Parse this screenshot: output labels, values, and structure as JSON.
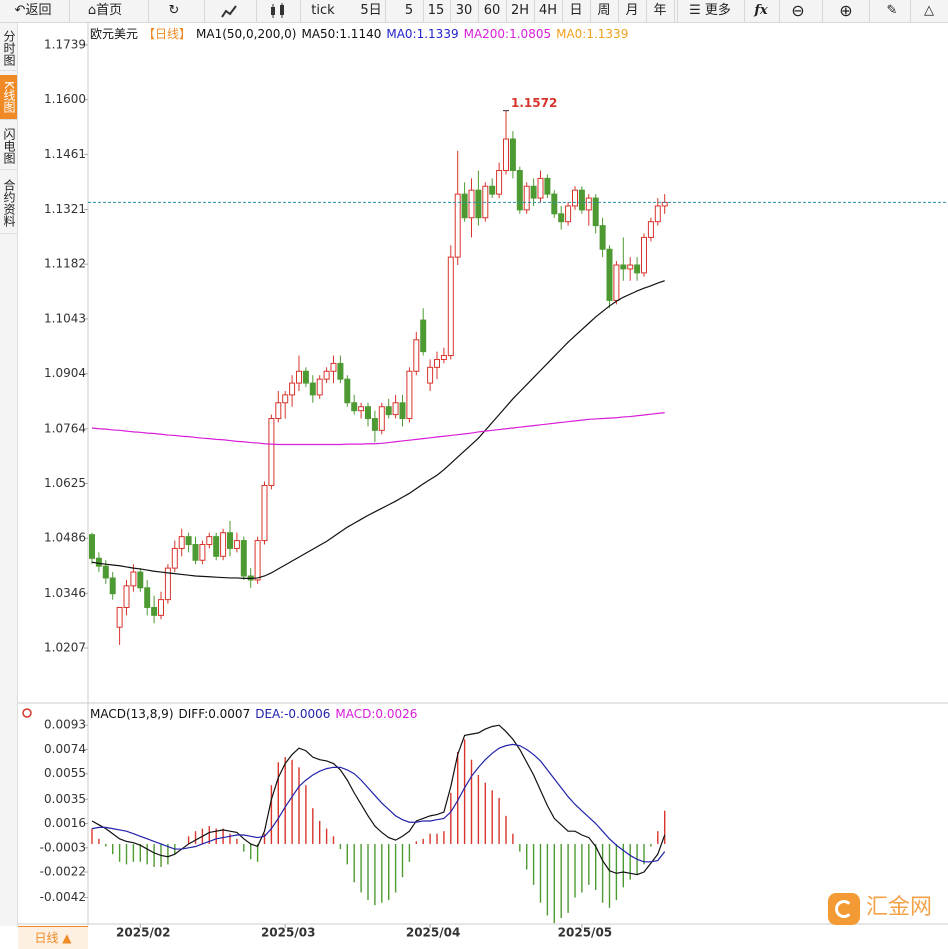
{
  "toolbar": {
    "back": "返回",
    "home": "首页",
    "tick": "tick",
    "periods": [
      "5日",
      "5",
      "15",
      "30",
      "60",
      "2H",
      "4H",
      "日",
      "周",
      "月",
      "年"
    ],
    "more": "更多",
    "fx": "fx"
  },
  "sidebar": [
    "分时图",
    "K线图",
    "闪电图",
    "合约资料"
  ],
  "bottom_tab": "日线 ▲",
  "watermark": "汇金网",
  "chart_data": [
    {
      "type": "candlestick",
      "symbol": "欧元美元",
      "period": "【日线】",
      "indicator": "MA1(50,0,200,0)",
      "legend_texts": [
        {
          "text": "MA50:1.1140",
          "color": "#111111"
        },
        {
          "text": "MA0:1.1339",
          "color": "#2222cc"
        },
        {
          "text": "MA200:1.0805",
          "color": "#d81ed8"
        },
        {
          "text": "MA0:1.1339",
          "color": "#f0a020"
        }
      ],
      "annotation": "1.1572",
      "up_color": "#d8342c",
      "down_color": "#4e9a32",
      "last_line_color": "#2a8fa0",
      "categories": [
        null,
        null,
        null,
        null,
        null,
        null,
        null,
        "2025/02",
        null,
        null,
        null,
        null,
        null,
        null,
        null,
        null,
        null,
        null,
        null,
        null,
        null,
        null,
        null,
        null,
        null,
        null,
        null,
        null,
        "2025/03",
        null,
        null,
        null,
        null,
        null,
        null,
        null,
        null,
        null,
        null,
        null,
        null,
        null,
        null,
        null,
        null,
        null,
        null,
        null,
        null,
        "2025/04",
        null,
        null,
        null,
        null,
        null,
        null,
        null,
        null,
        null,
        null,
        null,
        null,
        null,
        null,
        null,
        null,
        null,
        null,
        null,
        null,
        null,
        "2025/05",
        null,
        null,
        null,
        null,
        null,
        null,
        null,
        null,
        null,
        null,
        null,
        null
      ],
      "open": [
        1.0495,
        1.0435,
        1.0415,
        1.0385,
        1.026,
        1.031,
        1.0365,
        1.04,
        1.036,
        1.031,
        1.029,
        1.033,
        1.041,
        1.046,
        1.049,
        1.047,
        1.043,
        1.047,
        1.049,
        1.044,
        1.05,
        1.046,
        1.048,
        1.039,
        1.038,
        1.048,
        1.062,
        1.079,
        1.083,
        1.085,
        1.088,
        1.091,
        1.088,
        1.085,
        1.089,
        1.091,
        1.093,
        1.089,
        1.083,
        1.081,
        1.082,
        1.079,
        1.076,
        1.082,
        1.08,
        1.083,
        1.079,
        1.091,
        1.104,
        1.088,
        1.092,
        1.094,
        1.095,
        1.12,
        1.136,
        1.13,
        1.137,
        1.13,
        1.138,
        1.136,
        1.142,
        1.15,
        1.142,
        1.132,
        1.138,
        1.135,
        1.14,
        1.136,
        1.131,
        1.129,
        1.133,
        1.137,
        1.132,
        1.135,
        1.128,
        1.122,
        1.109,
        1.118,
        1.117,
        1.118,
        1.116,
        1.125,
        1.129,
        1.133
      ],
      "high": [
        1.05,
        1.045,
        1.043,
        1.04,
        1.031,
        1.038,
        1.042,
        1.041,
        1.038,
        1.034,
        1.035,
        1.042,
        1.048,
        1.051,
        1.05,
        1.049,
        1.048,
        1.05,
        1.05,
        1.051,
        1.053,
        1.05,
        1.049,
        1.041,
        1.049,
        1.063,
        1.08,
        1.086,
        1.086,
        1.09,
        1.095,
        1.092,
        1.09,
        1.09,
        1.092,
        1.095,
        1.095,
        1.09,
        1.085,
        1.083,
        1.083,
        1.081,
        1.083,
        1.084,
        1.085,
        1.085,
        1.092,
        1.101,
        1.107,
        1.094,
        1.096,
        1.097,
        1.123,
        1.147,
        1.139,
        1.14,
        1.142,
        1.139,
        1.14,
        1.144,
        1.1572,
        1.152,
        1.143,
        1.139,
        1.14,
        1.142,
        1.141,
        1.137,
        1.133,
        1.134,
        1.138,
        1.138,
        1.136,
        1.136,
        1.13,
        1.123,
        1.119,
        1.125,
        1.12,
        1.12,
        1.126,
        1.13,
        1.135,
        1.136
      ],
      "low": [
        1.042,
        1.04,
        1.037,
        1.033,
        1.0215,
        1.029,
        1.035,
        1.035,
        1.029,
        1.027,
        1.028,
        1.032,
        1.04,
        1.044,
        1.045,
        1.042,
        1.042,
        1.046,
        1.043,
        1.043,
        1.044,
        1.045,
        1.038,
        1.036,
        1.037,
        1.047,
        1.061,
        1.078,
        1.079,
        1.082,
        1.086,
        1.087,
        1.083,
        1.084,
        1.088,
        1.088,
        1.088,
        1.082,
        1.08,
        1.079,
        1.077,
        1.073,
        1.075,
        1.079,
        1.079,
        1.077,
        1.078,
        1.09,
        1.095,
        1.086,
        1.089,
        1.093,
        1.094,
        1.118,
        1.129,
        1.125,
        1.128,
        1.129,
        1.135,
        1.135,
        1.141,
        1.14,
        1.131,
        1.131,
        1.133,
        1.134,
        1.135,
        1.13,
        1.127,
        1.128,
        1.132,
        1.131,
        1.128,
        1.126,
        1.12,
        1.107,
        1.108,
        1.114,
        1.114,
        1.114,
        1.115,
        1.124,
        1.128,
        1.131
      ],
      "close": [
        1.0435,
        1.0415,
        1.0385,
        1.0345,
        1.031,
        1.0365,
        1.04,
        1.036,
        1.031,
        1.029,
        1.033,
        1.041,
        1.046,
        1.049,
        1.047,
        1.043,
        1.047,
        1.049,
        1.044,
        1.05,
        1.046,
        1.048,
        1.039,
        1.038,
        1.048,
        1.062,
        1.079,
        1.083,
        1.085,
        1.088,
        1.091,
        1.088,
        1.085,
        1.089,
        1.091,
        1.093,
        1.089,
        1.083,
        1.081,
        1.082,
        1.079,
        1.076,
        1.082,
        1.08,
        1.083,
        1.079,
        1.091,
        1.099,
        1.096,
        1.092,
        1.094,
        1.095,
        1.12,
        1.136,
        1.13,
        1.137,
        1.13,
        1.138,
        1.136,
        1.142,
        1.15,
        1.142,
        1.132,
        1.138,
        1.135,
        1.14,
        1.136,
        1.131,
        1.129,
        1.133,
        1.137,
        1.132,
        1.135,
        1.128,
        1.122,
        1.109,
        1.118,
        1.117,
        1.118,
        1.116,
        1.125,
        1.129,
        1.133,
        1.1339
      ],
      "series": [
        {
          "name": "MA50",
          "color": "#111111",
          "values": [
            1.0425,
            1.0422,
            1.042,
            1.0418,
            1.0416,
            1.0413,
            1.041,
            1.0408,
            1.0405,
            1.0402,
            1.04,
            1.0398,
            1.0396,
            1.0394,
            1.0392,
            1.039,
            1.0389,
            1.0388,
            1.0387,
            1.0386,
            1.0385,
            1.0385,
            1.0384,
            1.0384,
            1.0385,
            1.039,
            1.0398,
            1.0408,
            1.0418,
            1.0428,
            1.0438,
            1.0448,
            1.0458,
            1.0468,
            1.0478,
            1.049,
            1.0502,
            1.0514,
            1.0524,
            1.0534,
            1.0544,
            1.0553,
            1.0562,
            1.0571,
            1.058,
            1.059,
            1.06,
            1.0612,
            1.0624,
            1.0635,
            1.0646,
            1.066,
            1.0676,
            1.0692,
            1.0708,
            1.0724,
            1.074,
            1.076,
            1.078,
            1.08,
            1.082,
            1.084,
            1.0858,
            1.0876,
            1.0894,
            1.0912,
            1.093,
            1.0948,
            1.0966,
            1.0984,
            1.1,
            1.1016,
            1.1032,
            1.1048,
            1.1062,
            1.1076,
            1.1088,
            1.1098,
            1.1106,
            1.1114,
            1.1121,
            1.1127,
            1.1134,
            1.114
          ]
        },
        {
          "name": "MA200",
          "color": "#d81ed8",
          "values": [
            1.0766,
            1.0764,
            1.0763,
            1.0761,
            1.076,
            1.0758,
            1.0756,
            1.0755,
            1.0753,
            1.0752,
            1.075,
            1.0748,
            1.0747,
            1.0745,
            1.0744,
            1.0742,
            1.074,
            1.0739,
            1.0737,
            1.0736,
            1.0734,
            1.0732,
            1.0731,
            1.0729,
            1.0728,
            1.0726,
            1.0725,
            1.0724,
            1.0724,
            1.0724,
            1.0724,
            1.0724,
            1.0724,
            1.0724,
            1.0724,
            1.0724,
            1.0724,
            1.0725,
            1.0725,
            1.0725,
            1.0726,
            1.0726,
            1.0727,
            1.0729,
            1.0731,
            1.0733,
            1.0735,
            1.0737,
            1.0739,
            1.0741,
            1.0743,
            1.0745,
            1.0747,
            1.0749,
            1.0751,
            1.0753,
            1.0756,
            1.0758,
            1.076,
            1.0762,
            1.0764,
            1.0766,
            1.0768,
            1.077,
            1.0772,
            1.0774,
            1.0776,
            1.0778,
            1.078,
            1.0782,
            1.0784,
            1.0786,
            1.0788,
            1.0789,
            1.079,
            1.0791,
            1.0792,
            1.0794,
            1.0795,
            1.0797,
            1.0799,
            1.0801,
            1.0803,
            1.0805
          ]
        }
      ],
      "ylim": [
        1.0075,
        1.1782
      ],
      "yticks": [
        1.1739,
        {
          "value": 1.16,
          "label": "1.1600"
        },
        1.1461,
        1.1321,
        1.1182,
        1.1043,
        1.0904,
        1.0764,
        1.0625,
        1.0486,
        1.0346,
        1.0207
      ]
    },
    {
      "type": "macd",
      "indicator": "MACD(13,8,9)",
      "legend_texts": [
        {
          "text": "DIFF:0.0007",
          "color": "#111111"
        },
        {
          "text": "DEA:-0.0006",
          "color": "#2222aa"
        },
        {
          "text": "MACD:0.0026",
          "color": "#d81ed8"
        }
      ],
      "up_color": "#d8342c",
      "down_color": "#4e9a32",
      "series": [
        {
          "name": "DIFF",
          "color": "#111111",
          "values": [
            0.0018,
            0.0015,
            0.0012,
            0.0008,
            0.0004,
            0.0002,
            0.0001,
            -0.0001,
            -0.0004,
            -0.0007,
            -0.0009,
            -0.001,
            -0.0008,
            -0.0004,
            0.0,
            0.0003,
            0.0006,
            0.0009,
            0.001,
            0.0011,
            0.001,
            0.0009,
            0.0004,
            0.0,
            -0.0002,
            0.001,
            0.0035,
            0.0052,
            0.0063,
            0.007,
            0.0075,
            0.0073,
            0.0068,
            0.0066,
            0.0065,
            0.0063,
            0.0058,
            0.005,
            0.004,
            0.0031,
            0.0022,
            0.0014,
            0.0009,
            0.0005,
            0.0003,
            0.0006,
            0.001,
            0.0018,
            0.002,
            0.0022,
            0.0023,
            0.0025,
            0.0045,
            0.007,
            0.0085,
            0.0086,
            0.0087,
            0.009,
            0.0092,
            0.0093,
            0.0088,
            0.0082,
            0.0074,
            0.0064,
            0.0054,
            0.0042,
            0.003,
            0.002,
            0.0015,
            0.001,
            0.001,
            0.0007,
            0.0005,
            -0.0002,
            -0.0013,
            -0.0021,
            -0.0023,
            -0.0022,
            -0.0023,
            -0.0024,
            -0.0022,
            -0.0015,
            -0.0008,
            0.0007
          ]
        },
        {
          "name": "DEA",
          "color": "#2222aa",
          "values": [
            0.0012,
            0.0013,
            0.0013,
            0.0012,
            0.0011,
            0.001,
            0.0008,
            0.0006,
            0.0004,
            0.0002,
            0.0,
            -0.0002,
            -0.0004,
            -0.0004,
            -0.0003,
            -0.0002,
            0.0,
            0.0002,
            0.0004,
            0.0005,
            0.0006,
            0.0007,
            0.0007,
            0.0006,
            0.0005,
            0.0006,
            0.0012,
            0.002,
            0.0029,
            0.0037,
            0.0045,
            0.005,
            0.0054,
            0.0057,
            0.0059,
            0.006,
            0.006,
            0.0058,
            0.0055,
            0.005,
            0.0044,
            0.0038,
            0.0032,
            0.0027,
            0.0022,
            0.0019,
            0.0017,
            0.0017,
            0.0018,
            0.0018,
            0.0019,
            0.002,
            0.0025,
            0.0034,
            0.0044,
            0.0053,
            0.006,
            0.0066,
            0.0071,
            0.0075,
            0.0077,
            0.0078,
            0.0077,
            0.0074,
            0.007,
            0.0065,
            0.0058,
            0.0051,
            0.0044,
            0.0037,
            0.0031,
            0.0026,
            0.0021,
            0.0016,
            0.001,
            0.0004,
            -0.0001,
            -0.0005,
            -0.0009,
            -0.0012,
            -0.0014,
            -0.0014,
            -0.0013,
            -0.0006
          ]
        }
      ],
      "histogram": [
        0.0012,
        0.0004,
        -0.0002,
        -0.0008,
        -0.0014,
        -0.0016,
        -0.0014,
        -0.0014,
        -0.0016,
        -0.0018,
        -0.0018,
        -0.0016,
        -0.0008,
        0.0,
        0.0006,
        0.001,
        0.0012,
        0.0014,
        0.0012,
        0.0012,
        0.0008,
        0.0004,
        -0.0006,
        -0.0012,
        -0.0014,
        0.0008,
        0.0046,
        0.0064,
        0.0068,
        0.0066,
        0.006,
        0.0046,
        0.0028,
        0.0018,
        0.0012,
        0.0006,
        -0.0004,
        -0.0016,
        -0.003,
        -0.0038,
        -0.0044,
        -0.0048,
        -0.0046,
        -0.0044,
        -0.0038,
        -0.0026,
        -0.0014,
        0.0002,
        0.0004,
        0.0008,
        0.0008,
        0.001,
        0.004,
        0.0072,
        0.0082,
        0.0066,
        0.0054,
        0.0048,
        0.0042,
        0.0036,
        0.0022,
        0.0008,
        -0.0006,
        -0.002,
        -0.0032,
        -0.0046,
        -0.0056,
        -0.0062,
        -0.0058,
        -0.0054,
        -0.0042,
        -0.0038,
        -0.0032,
        -0.0036,
        -0.0046,
        -0.005,
        -0.0044,
        -0.0034,
        -0.0028,
        -0.0024,
        -0.0016,
        -0.0002,
        0.001,
        0.0026
      ],
      "ylim": [
        -0.0058,
        0.0101
      ],
      "yticks": [
        0.0093,
        0.0074,
        0.0055,
        0.0035,
        0.0016,
        -0.0003,
        -0.0022,
        -0.0042
      ]
    }
  ]
}
